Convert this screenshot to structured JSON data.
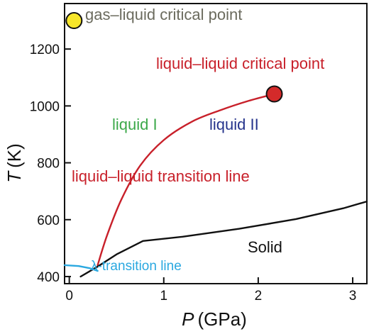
{
  "chart_data": {
    "type": "line",
    "xlabel_var": "P",
    "xlabel_unit": "(GPa)",
    "ylabel_var": "T",
    "ylabel_unit": "(K)",
    "xlim": [
      -0.05,
      3.15
    ],
    "ylim": [
      375,
      1360
    ],
    "x_ticks": [
      "0",
      "1",
      "2",
      "3"
    ],
    "y_ticks": [
      "400",
      "600",
      "800",
      "1000",
      "1200"
    ],
    "series": [
      {
        "key": "liquid_liquid_transition",
        "color": "#c8202a",
        "x": [
          0.3,
          0.4,
          0.55,
          0.75,
          1.0,
          1.3,
          1.6,
          1.9,
          2.17
        ],
        "y": [
          440,
          545,
          670,
          790,
          880,
          945,
          985,
          1018,
          1042
        ]
      },
      {
        "key": "melting_line",
        "color": "#111111",
        "x": [
          0.12,
          0.3,
          0.5,
          0.78,
          1.2,
          1.8,
          2.4,
          2.9,
          3.15
        ],
        "y": [
          400,
          435,
          478,
          525,
          540,
          568,
          602,
          640,
          664
        ]
      },
      {
        "key": "lambda_line",
        "color": "#2aa8e0",
        "x": [
          -0.05,
          0.1,
          0.22,
          0.3
        ],
        "y": [
          440,
          437,
          429,
          420
        ]
      }
    ],
    "points": [
      {
        "key": "gas_liquid_cp",
        "x": 0.05,
        "y": 1300,
        "color": "#f7e62a"
      },
      {
        "key": "liquid_liquid_cp",
        "x": 2.17,
        "y": 1042,
        "color": "#d42a2a"
      }
    ],
    "annotations": {
      "gas_liquid_cp": "gas–liquid critical point",
      "ll_cp": "liquid–liquid critical point",
      "liquid_1": "liquid I",
      "liquid_2": "liquid II",
      "ll_line": "liquid–liquid transition line",
      "solid": "Solid",
      "lambda": "λ-transition line"
    },
    "colors": {
      "gas_liquid_label": "#6b6b5e",
      "ll_red": "#c8202a",
      "liquid_1": "#3ca84a",
      "liquid_2": "#26348c",
      "lambda": "#2aa8e0",
      "axis": "#111111"
    }
  }
}
